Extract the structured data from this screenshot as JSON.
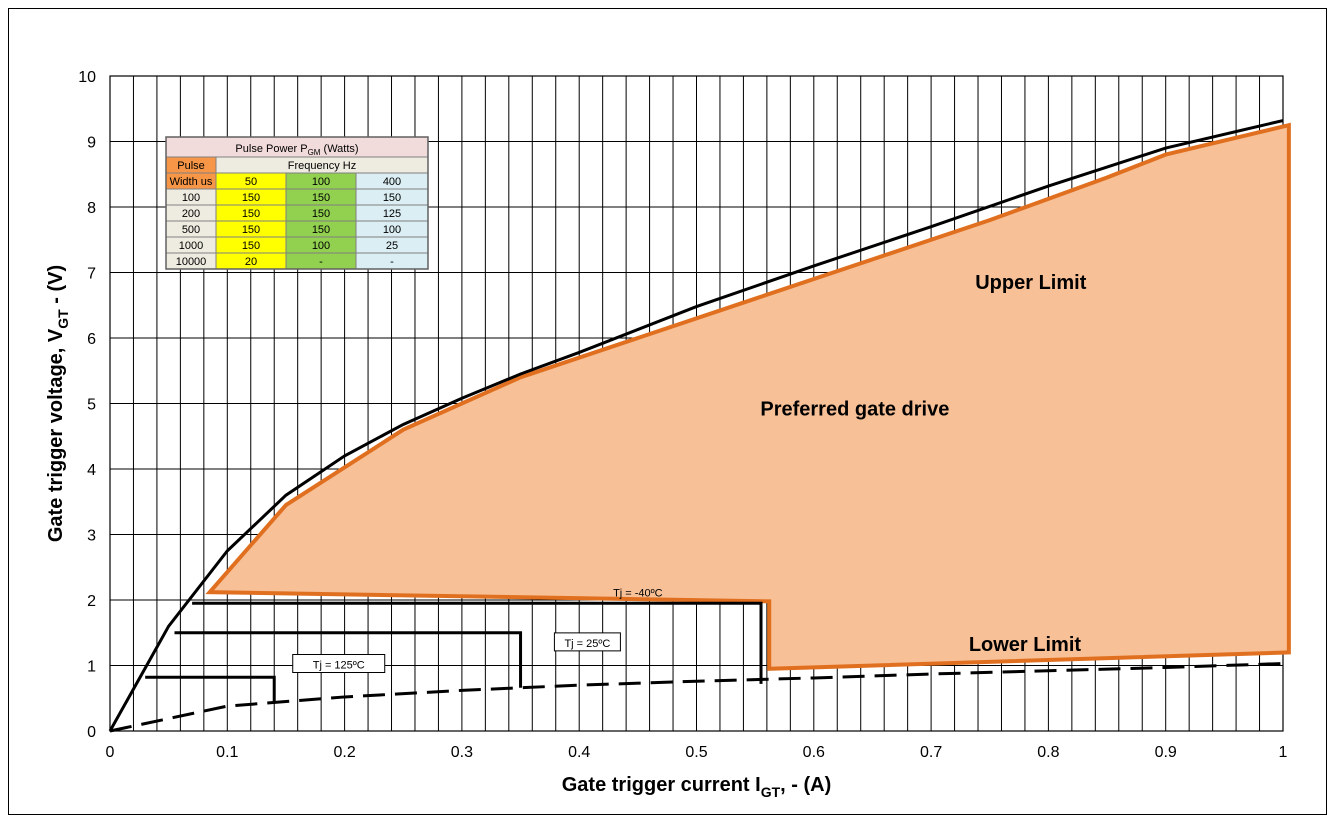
{
  "chart_data": {
    "type": "line",
    "xlabel": "Gate trigger current  I",
    "xlabel_sub": "GT",
    "xlabel_tail": ", - (A)",
    "ylabel": "Gate trigger voltage, V",
    "ylabel_sub": "GT",
    "ylabel_tail": " - (V)",
    "xlim": [
      0,
      1
    ],
    "ylim": [
      0,
      10
    ],
    "x_ticks": [
      "0",
      "0.1",
      "0.2",
      "0.3",
      "0.4",
      "0.5",
      "0.6",
      "0.7",
      "0.8",
      "0.9",
      "1"
    ],
    "y_ticks": [
      "0",
      "1",
      "2",
      "3",
      "4",
      "5",
      "6",
      "7",
      "8",
      "9",
      "10"
    ],
    "grid": true,
    "series": [
      {
        "name": "Upper Limit",
        "style": "solid",
        "color": "#000000",
        "x": [
          0,
          0.05,
          0.1,
          0.15,
          0.2,
          0.25,
          0.3,
          0.35,
          0.4,
          0.5,
          0.6,
          0.7,
          0.8,
          0.9,
          1.0
        ],
        "y": [
          0,
          1.6,
          2.75,
          3.6,
          4.2,
          4.68,
          5.08,
          5.45,
          5.78,
          6.48,
          7.1,
          7.7,
          8.32,
          8.9,
          9.32
        ]
      },
      {
        "name": "Lower Limit",
        "style": "dashed",
        "color": "#000000",
        "x": [
          0,
          0.1,
          0.2,
          0.3,
          0.4,
          0.5,
          0.6,
          0.7,
          0.8,
          0.9,
          1.0
        ],
        "y": [
          0,
          0.38,
          0.52,
          0.62,
          0.7,
          0.76,
          0.81,
          0.87,
          0.92,
          0.97,
          1.03
        ]
      },
      {
        "name": "Tj = 125°C",
        "style": "step",
        "color": "#000000",
        "x": [
          0.03,
          0.14,
          0.14
        ],
        "y": [
          0.82,
          0.82,
          0.45
        ]
      },
      {
        "name": "Tj = 25°C",
        "style": "step",
        "color": "#000000",
        "x": [
          0.055,
          0.35,
          0.35
        ],
        "y": [
          1.5,
          1.5,
          0.66
        ]
      },
      {
        "name": "Tj = -40°C",
        "style": "step",
        "color": "#000000",
        "x": [
          0.07,
          0.555,
          0.555
        ],
        "y": [
          1.95,
          1.95,
          0.72
        ]
      }
    ],
    "region": {
      "name": "Preferred gate drive",
      "fill": "#F8C096",
      "stroke": "#E07020",
      "x": [
        0.085,
        0.15,
        0.25,
        0.35,
        0.45,
        0.55,
        0.65,
        0.75,
        0.85,
        0.9,
        1.005,
        1.005,
        0.562,
        0.562,
        0.085
      ],
      "y": [
        2.12,
        3.45,
        4.6,
        5.4,
        6.0,
        6.6,
        7.2,
        7.8,
        8.45,
        8.8,
        9.25,
        1.2,
        0.95,
        1.98,
        2.12
      ]
    },
    "annotations": {
      "upper_limit": "Upper Limit",
      "lower_limit": "Lower Limit",
      "preferred": "Preferred gate drive",
      "tj_125": "Tj = 125ºC",
      "tj_25": "Tj = 25ºC",
      "tj_m40": "Tj = -40ºC"
    },
    "table": {
      "title_main": "Pulse Power P",
      "title_sub": "GM",
      "title_tail": " (Watts)",
      "head_left_1": "Pulse",
      "head_left_2": "Width us",
      "head_freq": "Frequency Hz",
      "freqs": [
        "50",
        "100",
        "400"
      ],
      "rows": [
        [
          "100",
          "150",
          "150",
          "150"
        ],
        [
          "200",
          "150",
          "150",
          "125"
        ],
        [
          "500",
          "150",
          "150",
          "100"
        ],
        [
          "1000",
          "150",
          "100",
          "25"
        ],
        [
          "10000",
          "20",
          "-",
          "-"
        ]
      ]
    }
  }
}
